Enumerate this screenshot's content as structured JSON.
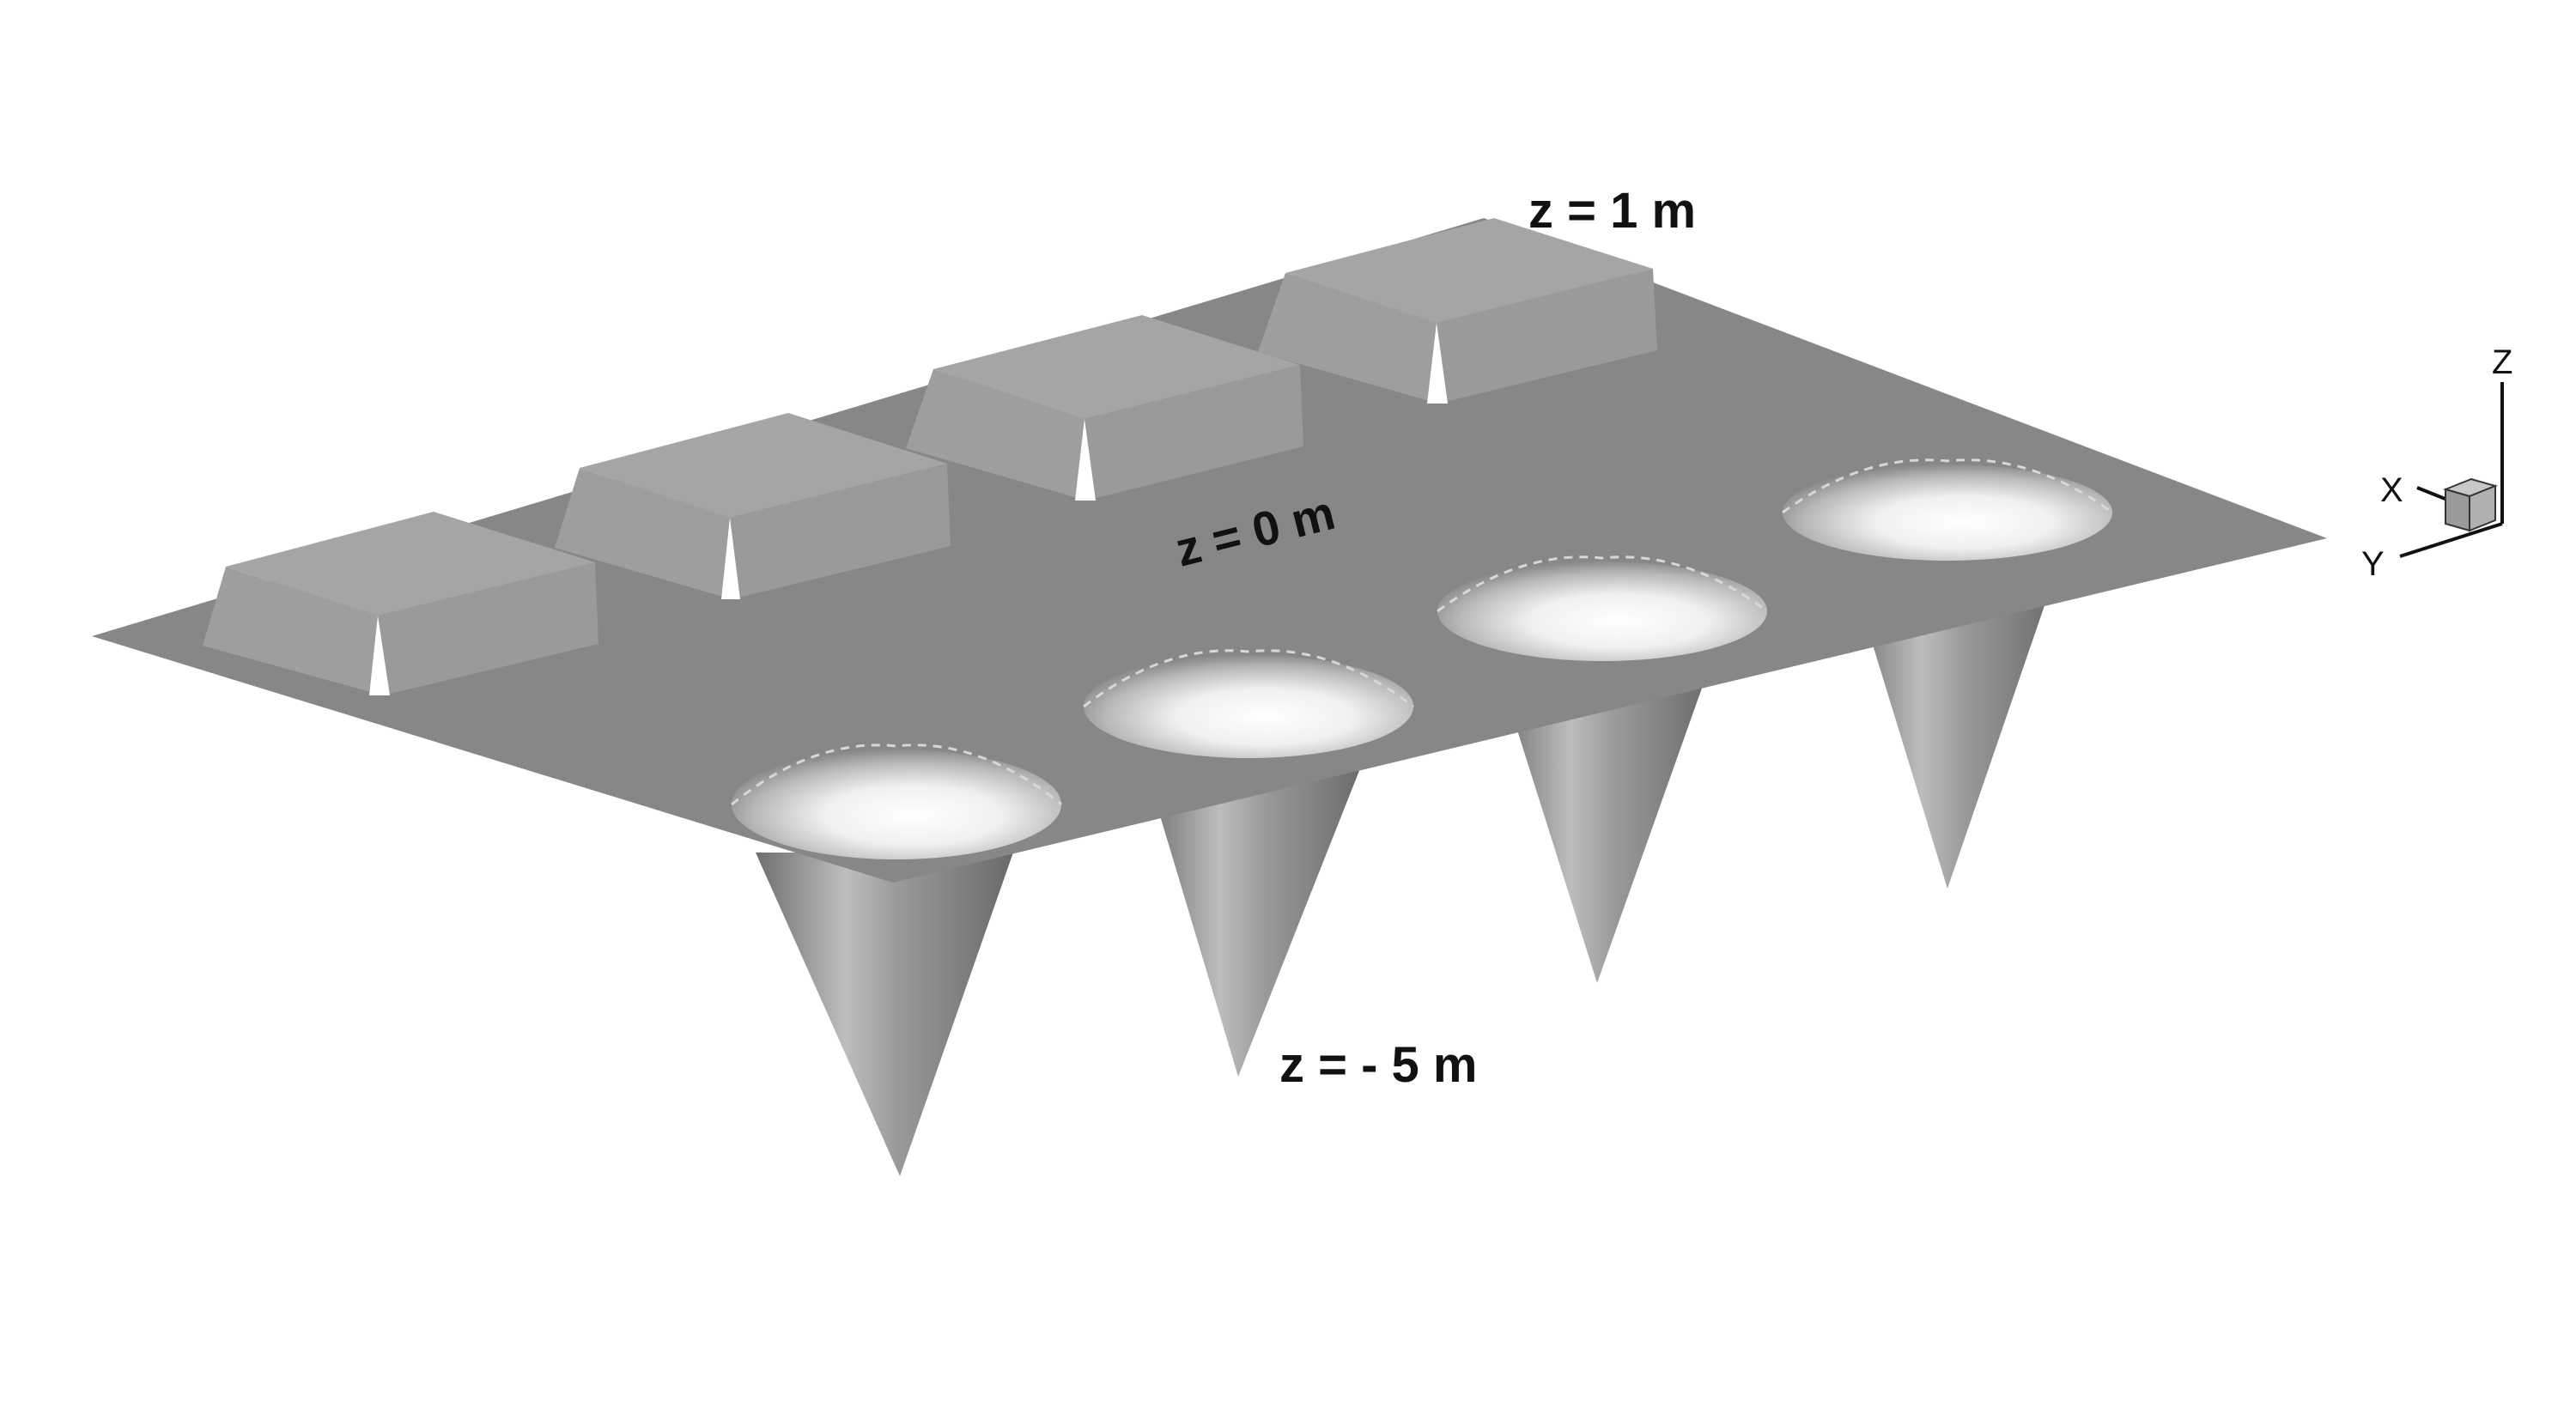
{
  "labels": {
    "top": "z = 1 m",
    "middle": "z = 0 m",
    "bottom": "z = - 5 m"
  },
  "axes": {
    "z": "Z",
    "x": "X",
    "y": "Y"
  },
  "colors": {
    "plane": "#878787",
    "block_top": "#a8a8a8",
    "block_side": "#9c9c9c",
    "cone_dark": "#7a7a7a",
    "cone_light": "#c4c4c4",
    "hole_inner": "#f8f8f8",
    "notch": "#ffffff"
  }
}
